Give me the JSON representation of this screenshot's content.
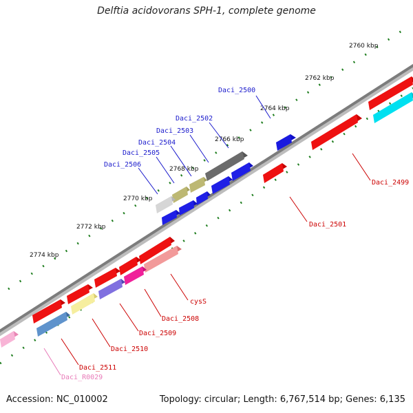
{
  "title": "Delftia acidovorans SPH-1, complete genome",
  "footer": {
    "accession": "Accession: NC_010002",
    "summary": "Topology: circular; Length: 6,767,514 bp; Genes: 6,135"
  },
  "colors": {
    "backbone": "#8c8c8c",
    "ticks": "#1e7d1e",
    "label_blue": "#1a1acc",
    "label_red": "#cc0000",
    "label_pink": "#e87ab8"
  },
  "scale_labels": [
    "2760 kbp",
    "2762 kbp",
    "2764 kbp",
    "2766 kbp",
    "2768 kbp",
    "2770 kbp",
    "2772 kbp",
    "2774 kbp"
  ],
  "genes": [
    {
      "name": "Daci_2499",
      "color": "#ee1111",
      "strand": "-"
    },
    {
      "name": "Daci_2500",
      "color": "#1515dd",
      "strand": "+"
    },
    {
      "name": "Daci_2501",
      "color": "#ee1111",
      "strand": "-"
    },
    {
      "name": "Daci_2502",
      "color": "#666666",
      "strand": "+"
    },
    {
      "name": "Daci_2503",
      "color": "#b5b06a",
      "strand": "+"
    },
    {
      "name": "Daci_2504",
      "color": "#b5b06a",
      "strand": "+"
    },
    {
      "name": "Daci_2505",
      "color": "#b5b06a",
      "strand": "+"
    },
    {
      "name": "Daci_2506",
      "color": "#c9c9c9",
      "strand": "+"
    },
    {
      "name": "cysS",
      "color": "#ee8080",
      "strand": "-"
    },
    {
      "name": "Daci_2508",
      "color": "#ee1493",
      "strand": "-"
    },
    {
      "name": "Daci_2509",
      "color": "#6a5acd",
      "strand": "-"
    },
    {
      "name": "Daci_2510",
      "color": "#f0e68c",
      "strand": "-"
    },
    {
      "name": "Daci_2511",
      "color": "#4a7fb8",
      "strand": "-"
    },
    {
      "name": "Daci_R0029",
      "color": "#f4a0c8",
      "strand": "-"
    }
  ]
}
